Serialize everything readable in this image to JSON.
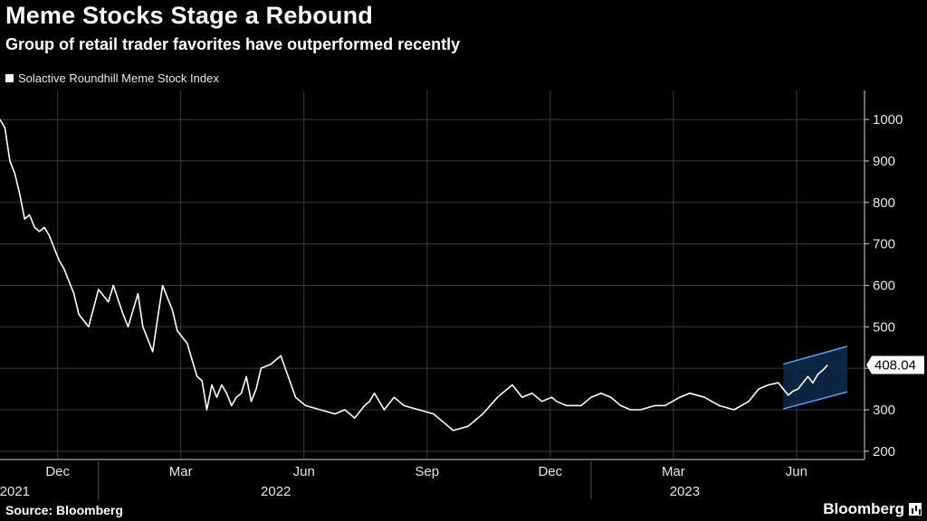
{
  "header": {
    "title": "Meme Stocks Stage a Rebound",
    "subtitle": "Group of retail trader favorites have outperformed recently"
  },
  "footer": {
    "source": "Source: Bloomberg",
    "brand": "Bloomberg"
  },
  "colors": {
    "background": "#000000",
    "line": "#ffffff",
    "grid": "#3a3a3a",
    "channel": "#4aa3ff",
    "channel_fill": "#0d2a4a"
  },
  "chart_data": {
    "type": "line",
    "title": "Meme Stocks Stage a Rebound",
    "subtitle": "Group of retail trader favorites have outperformed recently",
    "legend": [
      "Solactive Roundhill Meme Stock Index"
    ],
    "ylim": [
      180,
      1070
    ],
    "yticks": [
      200,
      300,
      400,
      500,
      600,
      700,
      800,
      900,
      1000
    ],
    "xlim": [
      2021.8,
      2023.555
    ],
    "xticks": [
      {
        "x": 2021.917,
        "label": "Dec"
      },
      {
        "x": 2022.167,
        "label": "Mar"
      },
      {
        "x": 2022.417,
        "label": "Jun"
      },
      {
        "x": 2022.667,
        "label": "Sep"
      },
      {
        "x": 2022.917,
        "label": "Dec"
      },
      {
        "x": 2023.167,
        "label": "Mar"
      },
      {
        "x": 2023.417,
        "label": "Jun"
      }
    ],
    "year_labels": [
      {
        "x": 2021.83,
        "label": "2021"
      },
      {
        "x": 2022.36,
        "label": "2022"
      },
      {
        "x": 2023.19,
        "label": "2023"
      }
    ],
    "year_dividers": [
      2022.0,
      2023.0
    ],
    "last_value_label": "408.04",
    "series": [
      {
        "name": "Solactive Roundhill Meme Stock Index",
        "x": [
          2021.8,
          2021.81,
          2021.82,
          2021.83,
          2021.84,
          2021.85,
          2021.86,
          2021.87,
          2021.88,
          2021.89,
          2021.9,
          2021.92,
          2021.93,
          2021.95,
          2021.96,
          2021.98,
          2022.0,
          2022.02,
          2022.03,
          2022.05,
          2022.06,
          2022.08,
          2022.09,
          2022.11,
          2022.12,
          2022.13,
          2022.14,
          2022.15,
          2022.16,
          2022.18,
          2022.19,
          2022.2,
          2022.21,
          2022.22,
          2022.23,
          2022.24,
          2022.25,
          2022.26,
          2022.27,
          2022.28,
          2022.29,
          2022.3,
          2022.31,
          2022.32,
          2022.33,
          2022.35,
          2022.37,
          2022.4,
          2022.42,
          2022.45,
          2022.48,
          2022.5,
          2022.52,
          2022.54,
          2022.55,
          2022.56,
          2022.58,
          2022.6,
          2022.62,
          2022.65,
          2022.68,
          2022.7,
          2022.72,
          2022.75,
          2022.78,
          2022.81,
          2022.84,
          2022.86,
          2022.88,
          2022.9,
          2022.92,
          2022.93,
          2022.95,
          2022.98,
          2023.0,
          2023.02,
          2023.04,
          2023.06,
          2023.08,
          2023.1,
          2023.13,
          2023.15,
          2023.18,
          2023.2,
          2023.23,
          2023.26,
          2023.29,
          2023.32,
          2023.34,
          2023.36,
          2023.38,
          2023.4,
          2023.41,
          2023.42,
          2023.44,
          2023.45,
          2023.46,
          2023.47,
          2023.48
        ],
        "values": [
          1000,
          980,
          900,
          870,
          820,
          760,
          770,
          740,
          730,
          740,
          720,
          660,
          640,
          580,
          530,
          500,
          590,
          560,
          600,
          530,
          500,
          580,
          500,
          440,
          520,
          600,
          570,
          540,
          490,
          460,
          420,
          380,
          370,
          300,
          360,
          330,
          360,
          340,
          310,
          330,
          340,
          380,
          320,
          350,
          400,
          410,
          430,
          330,
          310,
          300,
          290,
          300,
          280,
          310,
          320,
          340,
          300,
          330,
          310,
          300,
          290,
          270,
          250,
          260,
          290,
          330,
          360,
          330,
          340,
          320,
          330,
          320,
          310,
          310,
          330,
          340,
          330,
          310,
          300,
          300,
          310,
          310,
          330,
          340,
          330,
          310,
          300,
          320,
          350,
          360,
          365,
          335,
          345,
          350,
          380,
          365,
          385,
          395,
          408.04
        ]
      }
    ],
    "channel": {
      "x_start": 2023.39,
      "x_end": 2023.52,
      "upper": [
        410,
        453
      ],
      "lower": [
        302,
        343
      ]
    }
  }
}
